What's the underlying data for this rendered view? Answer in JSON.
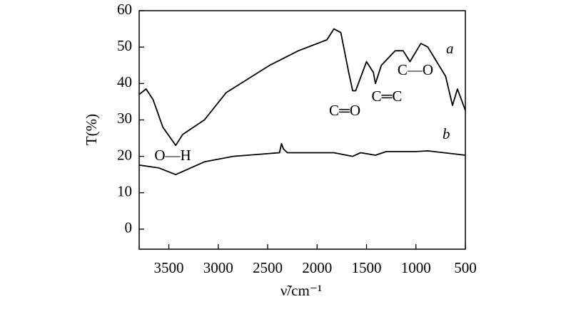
{
  "chart_data": {
    "type": "line",
    "xlabel": "ν̃/cm⁻¹",
    "ylabel": "T(%)",
    "xlim": [
      3800,
      500
    ],
    "ylim": [
      -5.5,
      60
    ],
    "xticks": [
      3500,
      3000,
      2500,
      2000,
      1500,
      1000,
      500
    ],
    "yticks": [
      0,
      10,
      20,
      30,
      40,
      50,
      60
    ],
    "annotations": [
      "O—H",
      "C═O",
      "C═C",
      "C—O"
    ],
    "series": [
      {
        "name": "a",
        "color": "#000000",
        "x": [
          3800,
          3730,
          3660,
          3560,
          3430,
          3360,
          3140,
          2920,
          2480,
          2190,
          1900,
          1830,
          1760,
          1680,
          1640,
          1610,
          1500,
          1430,
          1410,
          1350,
          1210,
          1130,
          1060,
          950,
          880,
          790,
          700,
          630,
          580,
          500
        ],
        "values": [
          37,
          38.5,
          35.6,
          28,
          23,
          26,
          30,
          37.5,
          45,
          49,
          52,
          55,
          54,
          43,
          38,
          38,
          46,
          43,
          40,
          45,
          49,
          49,
          46,
          51,
          50,
          46,
          42,
          34,
          38.5,
          32.6
        ]
      },
      {
        "name": "b",
        "color": "#000000",
        "x": [
          3800,
          3600,
          3430,
          3140,
          2850,
          2380,
          2360,
          2340,
          2300,
          1830,
          1640,
          1560,
          1410,
          1300,
          1000,
          880,
          500
        ],
        "values": [
          17.6,
          16.8,
          15,
          18.5,
          20,
          21,
          23.5,
          22,
          21,
          21,
          20,
          21,
          20.3,
          21.3,
          21.3,
          21.5,
          20.3
        ]
      }
    ]
  }
}
